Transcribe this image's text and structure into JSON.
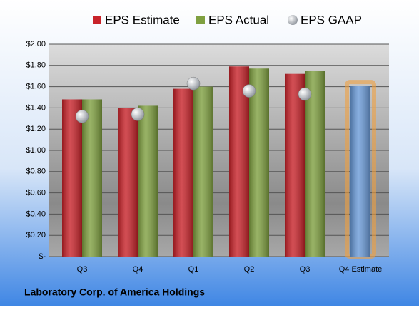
{
  "chart_data": {
    "type": "bar",
    "title": "Laboratory Corp. of America Holdings",
    "categories": [
      "Q3",
      "Q4",
      "Q1",
      "Q2",
      "Q3",
      "Q4 Estimate"
    ],
    "series": [
      {
        "name": "EPS Estimate",
        "color": "#c8232a",
        "colors": [
          "#c8232a",
          "#c8232a",
          "#c8232a",
          "#c8232a",
          "#c8232a",
          "#6a9ad8"
        ],
        "values": [
          1.48,
          1.4,
          1.58,
          1.79,
          1.72,
          1.61
        ]
      },
      {
        "name": "EPS Actual",
        "color": "#7fa040",
        "values": [
          1.48,
          1.42,
          1.6,
          1.77,
          1.75,
          null
        ]
      },
      {
        "name": "EPS GAAP",
        "color": "#a8adb4",
        "marker": "circle",
        "values": [
          1.32,
          1.34,
          1.63,
          1.56,
          1.53,
          null
        ]
      }
    ],
    "ylim": [
      0,
      2
    ],
    "yticks": [
      {
        "value": 0,
        "label": "$-"
      },
      {
        "value": 0.2,
        "label": "$0.20"
      },
      {
        "value": 0.4,
        "label": "$0.40"
      },
      {
        "value": 0.6,
        "label": "$0.60"
      },
      {
        "value": 0.8,
        "label": "$0.80"
      },
      {
        "value": 1,
        "label": "$1.00"
      },
      {
        "value": 1.2,
        "label": "$1.20"
      },
      {
        "value": 1.4,
        "label": "$1.40"
      },
      {
        "value": 1.6,
        "label": "$1.60"
      },
      {
        "value": 1.8,
        "label": "$1.80"
      },
      {
        "value": 2,
        "label": "$2.00"
      }
    ],
    "grid": true,
    "legend": "top"
  }
}
